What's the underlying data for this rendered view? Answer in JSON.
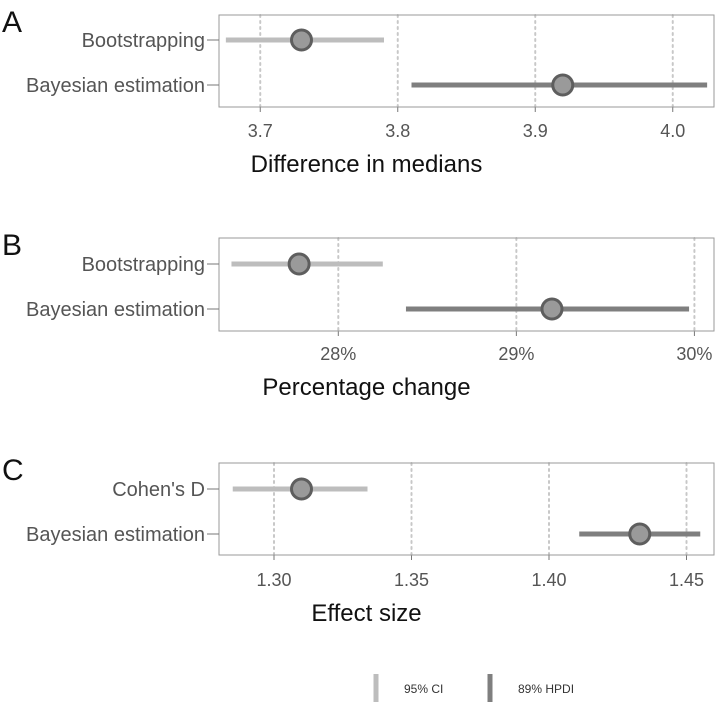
{
  "chart_data": [
    {
      "type": "interval",
      "panel": "A",
      "xlabel": "Difference in medians",
      "xlim": [
        3.67,
        4.03
      ],
      "ticks": [
        3.7,
        3.8,
        3.9,
        4.0
      ],
      "tick_labels": [
        "3.7",
        "3.8",
        "3.9",
        "4.0"
      ],
      "rows": [
        {
          "label": "Bootstrapping",
          "estimate": 3.73,
          "lower": 3.675,
          "upper": 3.79,
          "interval": "95% CI"
        },
        {
          "label": "Bayesian estimation",
          "estimate": 3.92,
          "lower": 3.81,
          "upper": 4.025,
          "interval": "89% HPDI"
        }
      ]
    },
    {
      "type": "interval",
      "panel": "B",
      "xlabel": "Percentage change",
      "xlim": [
        27.33,
        30.11
      ],
      "ticks": [
        28,
        29,
        30
      ],
      "tick_labels": [
        "28%",
        "29%",
        "30%"
      ],
      "rows": [
        {
          "label": "Bootstrapping",
          "estimate": 27.78,
          "lower": 27.4,
          "upper": 28.25,
          "interval": "95% CI"
        },
        {
          "label": "Bayesian estimation",
          "estimate": 29.2,
          "lower": 28.38,
          "upper": 29.97,
          "interval": "89% HPDI"
        }
      ]
    },
    {
      "type": "interval",
      "panel": "C",
      "xlabel": "Effect size",
      "xlim": [
        1.28,
        1.46
      ],
      "ticks": [
        1.3,
        1.35,
        1.4,
        1.45
      ],
      "tick_labels": [
        "1.30",
        "1.35",
        "1.40",
        "1.45"
      ],
      "rows": [
        {
          "label": "Cohen's D",
          "estimate": 1.31,
          "lower": 1.285,
          "upper": 1.334,
          "interval": "95% CI"
        },
        {
          "label": "Bayesian estimation",
          "estimate": 1.433,
          "lower": 1.411,
          "upper": 1.455,
          "interval": "89% HPDI"
        }
      ]
    }
  ],
  "legend": [
    {
      "label": "95% CI",
      "color": "#bdbdbd"
    },
    {
      "label": "89% HPDI",
      "color": "#7f7f7f"
    }
  ],
  "colors": {
    "ci": "#bdbdbd",
    "hpdi": "#7f7f7f",
    "point_fill": "#9a9a9a",
    "point_stroke": "#5e5e5e",
    "panel_border": "#9a9a9a",
    "grid": "#c8c8c8"
  }
}
